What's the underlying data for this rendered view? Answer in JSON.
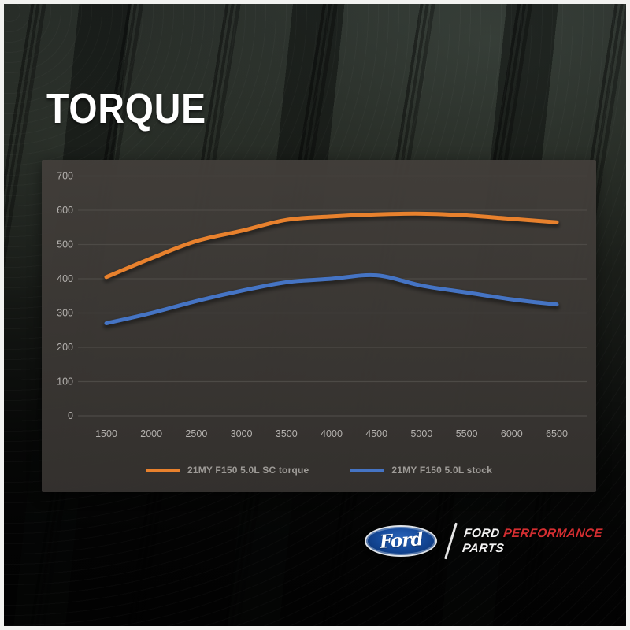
{
  "title": "TORQUE",
  "chart_data": {
    "type": "line",
    "x": [
      1500,
      2000,
      2500,
      3000,
      3500,
      4000,
      4500,
      5000,
      5500,
      6000,
      6500
    ],
    "yticks": [
      0,
      100,
      200,
      300,
      400,
      500,
      600,
      700
    ],
    "ylim": [
      0,
      700
    ],
    "xlabel": "",
    "ylabel": "",
    "grid": "horizontal",
    "legend_position": "bottom",
    "series": [
      {
        "name": "21MY F150 5.0L SC torque",
        "color": "#e8812d",
        "values": [
          405,
          460,
          510,
          540,
          572,
          582,
          588,
          590,
          585,
          575,
          565
        ]
      },
      {
        "name": "21MY F150 5.0L stock",
        "color": "#4574c4",
        "values": [
          270,
          300,
          335,
          365,
          390,
          400,
          410,
          380,
          360,
          340,
          325
        ]
      }
    ]
  },
  "branding": {
    "logo_script": "Ford",
    "line1_white": "FORD",
    "line1_red": "PERFORMANCE",
    "line2": "PARTS"
  },
  "colors": {
    "accent_orange": "#e8812d",
    "accent_blue": "#4574c4",
    "ford_oval_blue": "#154a9b",
    "performance_red": "#d42e31",
    "panel_bg": "#3a3734",
    "gridline": "#4d4a46",
    "tick_text": "#b5b2af"
  }
}
